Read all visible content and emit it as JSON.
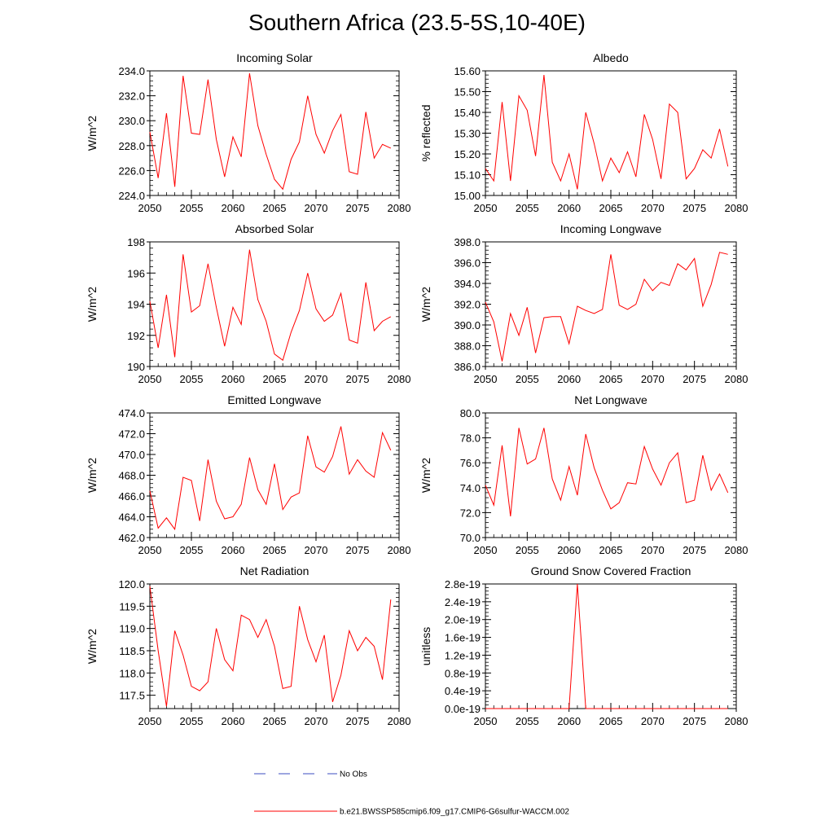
{
  "page_title": "Southern Africa (23.5-5S,10-40E)",
  "legend": {
    "obs_label": "No Obs",
    "obs_color": "#3b4cc0",
    "model_label": "b.e21.BWSSP585cmip6.f09_g17.CMIP6-G6sulfur-WACCM.002",
    "model_color": "#ff0000"
  },
  "chart_data": [
    {
      "type": "line",
      "title": "Incoming Solar",
      "ylabel": "W/m^2",
      "xlim": [
        2050,
        2080
      ],
      "ylim": [
        224,
        234
      ],
      "yticks": [
        224,
        226,
        228,
        230,
        232,
        234
      ],
      "ytick_labels": [
        "224.0",
        "226.0",
        "228.0",
        "230.0",
        "232.0",
        "234.0"
      ],
      "xticks": [
        2050,
        2055,
        2060,
        2065,
        2070,
        2075,
        2080
      ],
      "xtick_labels": [
        "2050",
        "2055",
        "2060",
        "2065",
        "2070",
        "2075",
        "2080"
      ],
      "series": [
        {
          "color": "#ff0000",
          "x": [
            2050,
            2051,
            2052,
            2053,
            2054,
            2055,
            2056,
            2057,
            2058,
            2059,
            2060,
            2061,
            2062,
            2063,
            2064,
            2065,
            2066,
            2067,
            2068,
            2069,
            2070,
            2071,
            2072,
            2073,
            2074,
            2075,
            2076,
            2077,
            2078,
            2079
          ],
          "values": [
            229.1,
            225.4,
            230.6,
            224.7,
            233.6,
            229.0,
            228.9,
            233.3,
            228.5,
            225.5,
            228.7,
            227.1,
            233.8,
            229.6,
            227.3,
            225.3,
            224.5,
            226.9,
            228.3,
            232.0,
            228.9,
            227.4,
            229.2,
            230.5,
            225.9,
            225.7,
            230.7,
            227.0,
            228.1,
            227.8
          ]
        }
      ]
    },
    {
      "type": "line",
      "title": "Albedo",
      "ylabel": "% reflected",
      "xlim": [
        2050,
        2080
      ],
      "ylim": [
        15.0,
        15.6
      ],
      "yticks": [
        15.0,
        15.1,
        15.2,
        15.3,
        15.4,
        15.5,
        15.6
      ],
      "ytick_labels": [
        "15.00",
        "15.10",
        "15.20",
        "15.30",
        "15.40",
        "15.50",
        "15.60"
      ],
      "xticks": [
        2050,
        2055,
        2060,
        2065,
        2070,
        2075,
        2080
      ],
      "xtick_labels": [
        "2050",
        "2055",
        "2060",
        "2065",
        "2070",
        "2075",
        "2080"
      ],
      "series": [
        {
          "color": "#ff0000",
          "x": [
            2050,
            2051,
            2052,
            2053,
            2054,
            2055,
            2056,
            2057,
            2058,
            2059,
            2060,
            2061,
            2062,
            2063,
            2064,
            2065,
            2066,
            2067,
            2068,
            2069,
            2070,
            2071,
            2072,
            2073,
            2074,
            2075,
            2076,
            2077,
            2078,
            2079
          ],
          "values": [
            15.13,
            15.07,
            15.45,
            15.07,
            15.48,
            15.41,
            15.19,
            15.58,
            15.16,
            15.07,
            15.2,
            15.03,
            15.4,
            15.25,
            15.07,
            15.18,
            15.11,
            15.21,
            15.09,
            15.39,
            15.27,
            15.08,
            15.44,
            15.4,
            15.08,
            15.13,
            15.22,
            15.18,
            15.32,
            15.14
          ]
        }
      ]
    },
    {
      "type": "line",
      "title": "Absorbed Solar",
      "ylabel": "W/m^2",
      "xlim": [
        2050,
        2080
      ],
      "ylim": [
        190,
        198
      ],
      "yticks": [
        190,
        192,
        194,
        196,
        198
      ],
      "ytick_labels": [
        "190",
        "192",
        "194",
        "196",
        "198"
      ],
      "xticks": [
        2050,
        2055,
        2060,
        2065,
        2070,
        2075,
        2080
      ],
      "xtick_labels": [
        "2050",
        "2055",
        "2060",
        "2065",
        "2070",
        "2075",
        "2080"
      ],
      "series": [
        {
          "color": "#ff0000",
          "x": [
            2050,
            2051,
            2052,
            2053,
            2054,
            2055,
            2056,
            2057,
            2058,
            2059,
            2060,
            2061,
            2062,
            2063,
            2064,
            2065,
            2066,
            2067,
            2068,
            2069,
            2070,
            2071,
            2072,
            2073,
            2074,
            2075,
            2076,
            2077,
            2078,
            2079
          ],
          "values": [
            194.2,
            191.2,
            194.6,
            190.6,
            197.2,
            193.5,
            193.9,
            196.6,
            193.8,
            191.3,
            193.8,
            192.7,
            197.5,
            194.3,
            192.9,
            190.8,
            190.4,
            192.2,
            193.6,
            196.0,
            193.7,
            192.9,
            193.3,
            194.7,
            191.7,
            191.5,
            195.4,
            192.3,
            192.9,
            193.2
          ]
        }
      ]
    },
    {
      "type": "line",
      "title": "Incoming Longwave",
      "ylabel": "W/m^2",
      "xlim": [
        2050,
        2080
      ],
      "ylim": [
        386,
        398
      ],
      "yticks": [
        386,
        388,
        390,
        392,
        394,
        396,
        398
      ],
      "ytick_labels": [
        "386.0",
        "388.0",
        "390.0",
        "392.0",
        "394.0",
        "396.0",
        "398.0"
      ],
      "xticks": [
        2050,
        2055,
        2060,
        2065,
        2070,
        2075,
        2080
      ],
      "xtick_labels": [
        "2050",
        "2055",
        "2060",
        "2065",
        "2070",
        "2075",
        "2080"
      ],
      "series": [
        {
          "color": "#ff0000",
          "x": [
            2050,
            2051,
            2052,
            2053,
            2054,
            2055,
            2056,
            2057,
            2058,
            2059,
            2060,
            2061,
            2062,
            2063,
            2064,
            2065,
            2066,
            2067,
            2068,
            2069,
            2070,
            2071,
            2072,
            2073,
            2074,
            2075,
            2076,
            2077,
            2078,
            2079
          ],
          "values": [
            392.2,
            390.3,
            386.5,
            391.1,
            389.0,
            391.7,
            387.3,
            390.7,
            390.8,
            390.8,
            388.2,
            391.8,
            391.4,
            391.1,
            391.5,
            396.8,
            391.9,
            391.5,
            392.0,
            394.4,
            393.3,
            394.1,
            393.8,
            395.9,
            395.3,
            396.4,
            391.8,
            393.9,
            397.0,
            396.8
          ]
        }
      ]
    },
    {
      "type": "line",
      "title": "Emitted Longwave",
      "ylabel": "W/m^2",
      "xlim": [
        2050,
        2080
      ],
      "ylim": [
        462,
        474
      ],
      "yticks": [
        462,
        464,
        466,
        468,
        470,
        472,
        474
      ],
      "ytick_labels": [
        "462.0",
        "464.0",
        "466.0",
        "468.0",
        "470.0",
        "472.0",
        "474.0"
      ],
      "xticks": [
        2050,
        2055,
        2060,
        2065,
        2070,
        2075,
        2080
      ],
      "xtick_labels": [
        "2050",
        "2055",
        "2060",
        "2065",
        "2070",
        "2075",
        "2080"
      ],
      "series": [
        {
          "color": "#ff0000",
          "x": [
            2050,
            2051,
            2052,
            2053,
            2054,
            2055,
            2056,
            2057,
            2058,
            2059,
            2060,
            2061,
            2062,
            2063,
            2064,
            2065,
            2066,
            2067,
            2068,
            2069,
            2070,
            2071,
            2072,
            2073,
            2074,
            2075,
            2076,
            2077,
            2078,
            2079
          ],
          "values": [
            466.5,
            462.9,
            463.9,
            462.8,
            467.8,
            467.5,
            463.6,
            469.5,
            465.5,
            463.8,
            464.0,
            465.2,
            469.7,
            466.6,
            465.2,
            469.1,
            464.7,
            465.9,
            466.3,
            471.8,
            468.8,
            468.3,
            469.8,
            472.7,
            468.1,
            469.5,
            468.4,
            467.8,
            472.1,
            470.4
          ]
        }
      ]
    },
    {
      "type": "line",
      "title": "Net Longwave",
      "ylabel": "W/m^2",
      "xlim": [
        2050,
        2080
      ],
      "ylim": [
        70,
        80
      ],
      "yticks": [
        70,
        72,
        74,
        76,
        78,
        80
      ],
      "ytick_labels": [
        "70.0",
        "72.0",
        "74.0",
        "76.0",
        "78.0",
        "80.0"
      ],
      "xticks": [
        2050,
        2055,
        2060,
        2065,
        2070,
        2075,
        2080
      ],
      "xtick_labels": [
        "2050",
        "2055",
        "2060",
        "2065",
        "2070",
        "2075",
        "2080"
      ],
      "series": [
        {
          "color": "#ff0000",
          "x": [
            2050,
            2051,
            2052,
            2053,
            2054,
            2055,
            2056,
            2057,
            2058,
            2059,
            2060,
            2061,
            2062,
            2063,
            2064,
            2065,
            2066,
            2067,
            2068,
            2069,
            2070,
            2071,
            2072,
            2073,
            2074,
            2075,
            2076,
            2077,
            2078,
            2079
          ],
          "values": [
            74.2,
            72.6,
            77.4,
            71.7,
            78.8,
            75.9,
            76.3,
            78.8,
            74.7,
            73.0,
            75.7,
            73.4,
            78.3,
            75.6,
            73.8,
            72.3,
            72.8,
            74.4,
            74.3,
            77.3,
            75.5,
            74.2,
            76.0,
            76.8,
            72.8,
            73.0,
            76.6,
            73.8,
            75.1,
            73.6
          ]
        }
      ]
    },
    {
      "type": "line",
      "title": "Net Radiation",
      "ylabel": "W/m^2",
      "xlim": [
        2050,
        2080
      ],
      "ylim": [
        117.2,
        120.0
      ],
      "yticks": [
        117.5,
        118.0,
        118.5,
        119.0,
        119.5,
        120.0
      ],
      "ytick_labels": [
        "117.5",
        "118.0",
        "118.5",
        "119.0",
        "119.5",
        "120.0"
      ],
      "xticks": [
        2050,
        2055,
        2060,
        2065,
        2070,
        2075,
        2080
      ],
      "xtick_labels": [
        "2050",
        "2055",
        "2060",
        "2065",
        "2070",
        "2075",
        "2080"
      ],
      "series": [
        {
          "color": "#ff0000",
          "x": [
            2050,
            2051,
            2052,
            2053,
            2054,
            2055,
            2056,
            2057,
            2058,
            2059,
            2060,
            2061,
            2062,
            2063,
            2064,
            2065,
            2066,
            2067,
            2068,
            2069,
            2070,
            2071,
            2072,
            2073,
            2074,
            2075,
            2076,
            2077,
            2078,
            2079
          ],
          "values": [
            119.95,
            118.5,
            117.25,
            118.95,
            118.4,
            117.7,
            117.6,
            117.8,
            119.0,
            118.3,
            118.05,
            119.3,
            119.2,
            118.8,
            119.2,
            118.6,
            117.65,
            117.7,
            119.5,
            118.75,
            118.25,
            118.85,
            117.35,
            117.95,
            118.95,
            118.5,
            118.8,
            118.6,
            117.85,
            119.65
          ]
        }
      ]
    },
    {
      "type": "line",
      "title": "Ground Snow Covered Fraction",
      "ylabel": "unitless",
      "xlim": [
        2050,
        2080
      ],
      "ylim": [
        0,
        2.8e-19
      ],
      "yticks": [
        0,
        4e-20,
        8e-20,
        1.2e-19,
        1.6e-19,
        2e-19,
        2.4e-19,
        2.8e-19
      ],
      "ytick_labels": [
        "0.0e-19",
        "0.4e-19",
        "0.8e-19",
        "1.2e-19",
        "1.6e-19",
        "2.0e-19",
        "2.4e-19",
        "2.8e-19"
      ],
      "xticks": [
        2050,
        2055,
        2060,
        2065,
        2070,
        2075,
        2080
      ],
      "xtick_labels": [
        "2050",
        "2055",
        "2060",
        "2065",
        "2070",
        "2075",
        "2080"
      ],
      "series": [
        {
          "color": "#ff0000",
          "x": [
            2050,
            2051,
            2052,
            2053,
            2054,
            2055,
            2056,
            2057,
            2058,
            2059,
            2060,
            2061,
            2062,
            2063,
            2064,
            2065,
            2066,
            2067,
            2068,
            2069,
            2070,
            2071,
            2072,
            2073,
            2074,
            2075,
            2076,
            2077,
            2078,
            2079
          ],
          "values": [
            0,
            0,
            0,
            0,
            0,
            0,
            0,
            0,
            0,
            0,
            0,
            2.8e-19,
            0,
            0,
            0,
            0,
            0,
            0,
            0,
            0,
            0,
            0,
            0,
            0,
            0,
            0,
            0,
            0,
            0,
            0
          ]
        }
      ]
    }
  ]
}
